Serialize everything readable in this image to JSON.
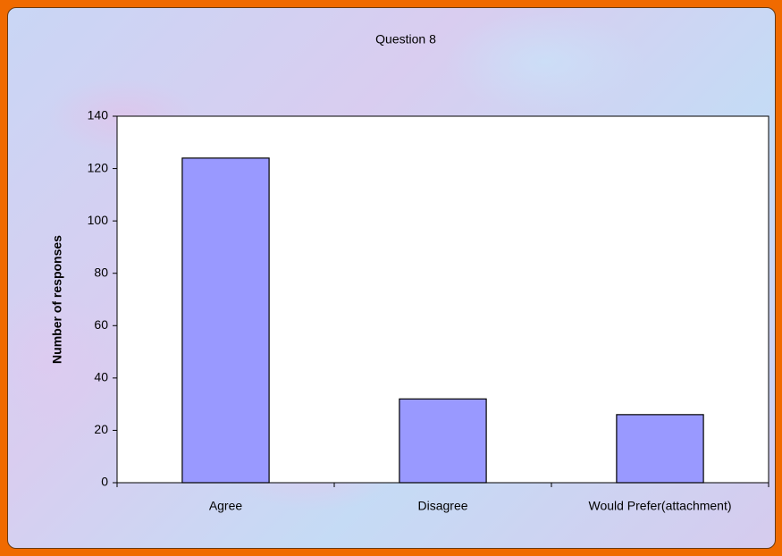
{
  "chart_data": {
    "type": "bar",
    "title": "Question 8",
    "y_label": "Number of responses",
    "categories": [
      "Agree",
      "Disagree",
      "Would Prefer(attachment)"
    ],
    "values": [
      124,
      32,
      26
    ],
    "color": "#9999ff",
    "ylim": [
      0,
      140
    ],
    "yticks": [
      0,
      20,
      40,
      60,
      80,
      100,
      120,
      140
    ],
    "grid": false
  }
}
